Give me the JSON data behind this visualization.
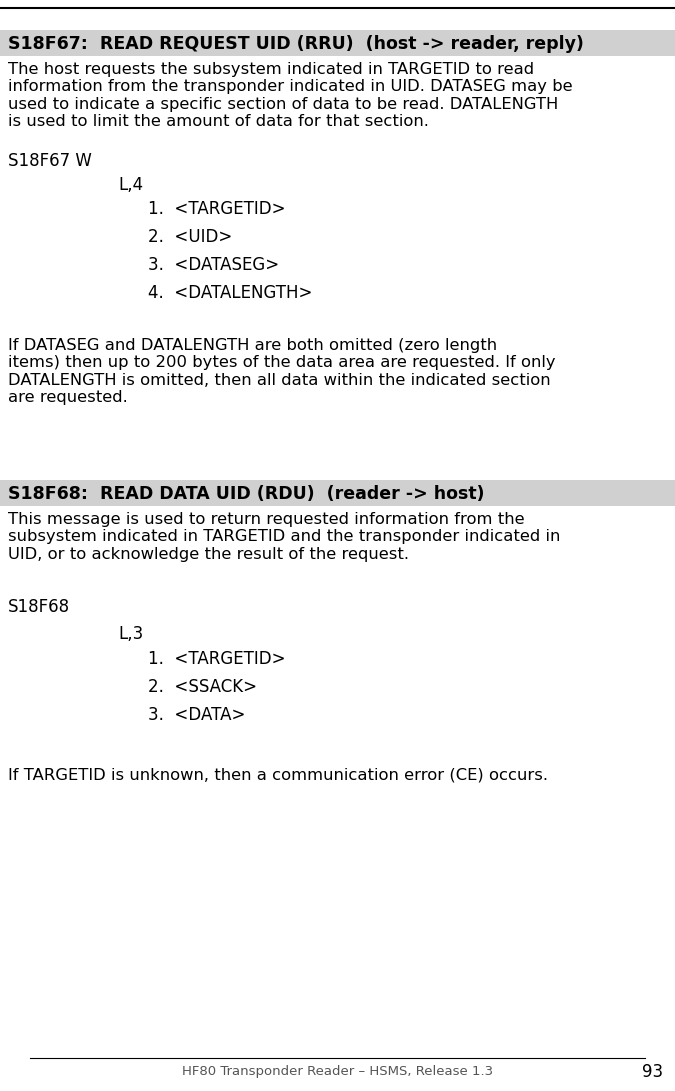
{
  "page_number": "93",
  "footer_text": "HF80 Transponder Reader – HSMS, Release 1.3",
  "bg_color": "#ffffff",
  "header1_bg": "#d0d0d0",
  "header1_text": "S18F67:  READ REQUEST UID (RRU)  (host -> reader, reply)",
  "header2_bg": "#d0d0d0",
  "header2_text": "S18F68:  READ DATA UID (RDU)  (reader -> host)",
  "body1_text": "The host requests the subsystem indicated in TARGETID to read\ninformation from the transponder indicated in UID. DATASEG may be\nused to indicate a specific section of data to be read. DATALENGTH\nis used to limit the amount of data for that section.",
  "s18f67_label": "S18F67 W",
  "list1_header": "L,4",
  "list1_items": [
    "1.  <TARGETID>",
    "2.  <UID>",
    "3.  <DATASEG>",
    "4.  <DATALENGTH>"
  ],
  "note1_text": "If DATASEG and DATALENGTH are both omitted (zero length\nitems) then up to 200 bytes of the data area are requested. If only\nDATALENGTH is omitted, then all data within the indicated section\nare requested.",
  "body2_text": "This message is used to return requested information from the\nsubsystem indicated in TARGETID and the transponder indicated in\nUID, or to acknowledge the result of the request.",
  "s18f68_label": "S18F68",
  "list2_header": "L,3",
  "list2_items": [
    "1.  <TARGETID>",
    "2.  <SSACK>",
    "3.  <DATA>"
  ],
  "note2_text": "If TARGETID is unknown, then a communication error (CE) occurs.",
  "font_size_body": 11.8,
  "font_size_header": 12.5,
  "font_size_mono": 12.0,
  "font_size_footer": 9.5,
  "font_size_pagenum": 12.0
}
